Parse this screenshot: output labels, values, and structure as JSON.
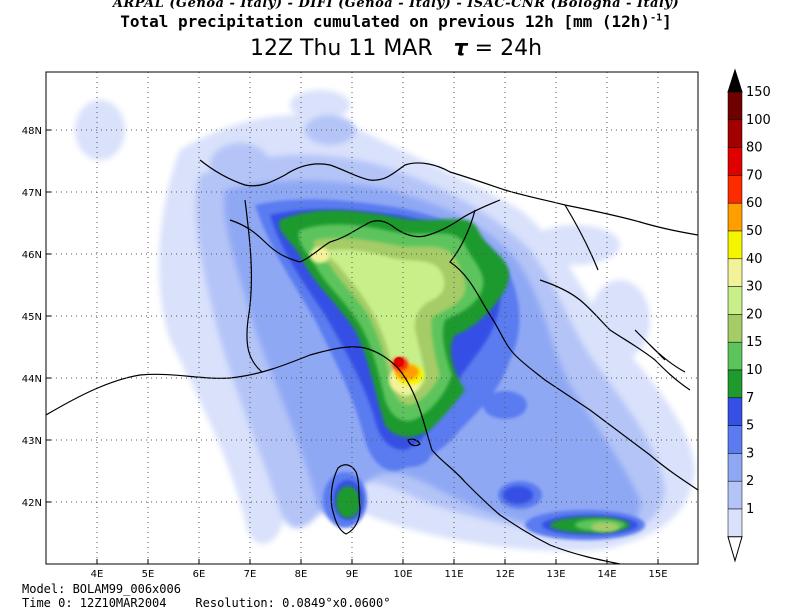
{
  "header": {
    "institutions": "ARPAL (Genoa - Italy)  -  DIFI (Genoa - Italy)  -  ISAC-CNR (Bologna - Italy)",
    "field_title": "Total precipitation cumulated on previous 12h [mm (12h)",
    "field_title_exp": "-1",
    "field_title_end": "]",
    "valid_time": "12Z Thu 11 MAR",
    "tau_symbol": "τ",
    "tau_value": "= 24h"
  },
  "map": {
    "lon_labels": [
      "4E",
      "5E",
      "6E",
      "7E",
      "8E",
      "9E",
      "10E",
      "11E",
      "12E",
      "13E",
      "14E",
      "15E"
    ],
    "lat_labels": [
      "48N",
      "47N",
      "46N",
      "45N",
      "44N",
      "43N",
      "42N"
    ],
    "grid_lines": "dotted"
  },
  "colorbar": {
    "labels": [
      "150",
      "100",
      "80",
      "70",
      "60",
      "50",
      "40",
      "30",
      "20",
      "15",
      "10",
      "7",
      "5",
      "3",
      "2",
      "1"
    ],
    "colors": [
      "#6e0000",
      "#a30000",
      "#e10000",
      "#ff2b00",
      "#ff9e00",
      "#f5f500",
      "#f2f29a",
      "#c8ef89",
      "#a5cc66",
      "#5dc45d",
      "#1e9a2e",
      "#3550e6",
      "#5a7cf0",
      "#8fa8f4",
      "#b4c4f7",
      "#d9e1fb"
    ],
    "arrow_color": "#000000"
  },
  "footer": {
    "model": "Model: BOLAM99_006x006",
    "time0": "Time 0: 12Z10MAR2004",
    "resolution": "Resolution: 0.0849°x0.0600°"
  }
}
